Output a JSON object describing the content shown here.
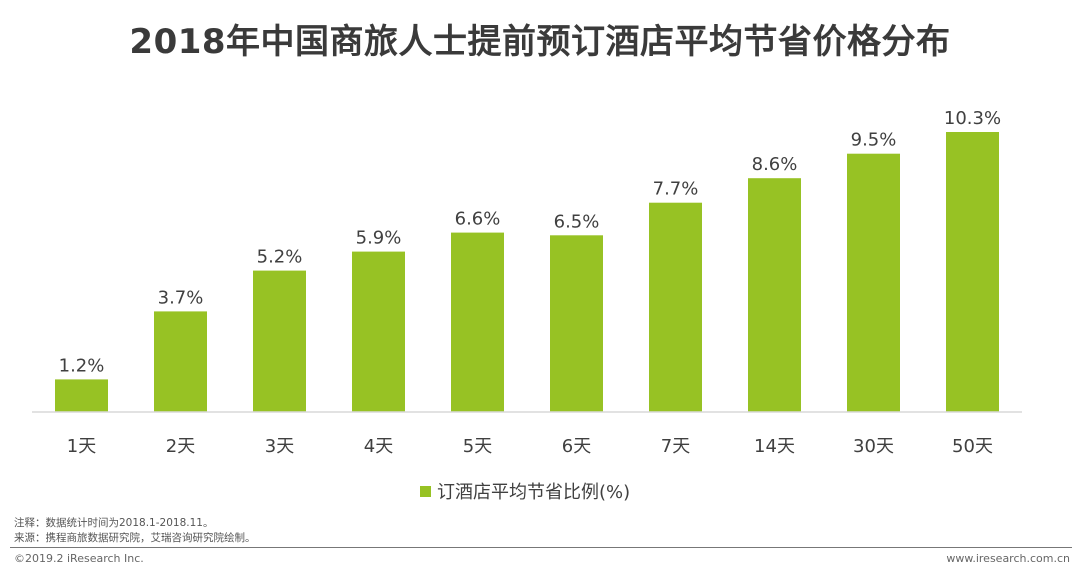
{
  "title": "2018年中国商旅人士提前预订酒店平均节省价格分布",
  "chart_data": {
    "type": "bar",
    "categories": [
      "1天",
      "2天",
      "3天",
      "4天",
      "5天",
      "6天",
      "7天",
      "14天",
      "30天",
      "50天"
    ],
    "series": [
      {
        "name": "订酒店平均节省比例(%)",
        "values": [
          1.2,
          3.7,
          5.2,
          5.9,
          6.6,
          6.5,
          7.7,
          8.6,
          9.5,
          10.3
        ],
        "labels": [
          "1.2%",
          "3.7%",
          "5.2%",
          "5.9%",
          "6.6%",
          "6.5%",
          "7.7%",
          "8.6%",
          "9.5%",
          "10.3%"
        ]
      }
    ],
    "ylim": [
      0,
      10.3
    ],
    "grid": false,
    "legend_position": "bottom",
    "bar_color": "#97C224"
  },
  "legend": {
    "label": "订酒店平均节省比例(%)"
  },
  "notes": {
    "note": "注释：数据统计时间为2018.1-2018.11。",
    "source": "来源：携程商旅数据研究院，艾瑞咨询研究院绘制。"
  },
  "footer": {
    "copyright": "©2019.2 iResearch Inc.",
    "website": "www.iresearch.com.cn"
  },
  "colors": {
    "axis": "#d9d9d9",
    "text": "#404040",
    "title": "#3a3a3a"
  }
}
